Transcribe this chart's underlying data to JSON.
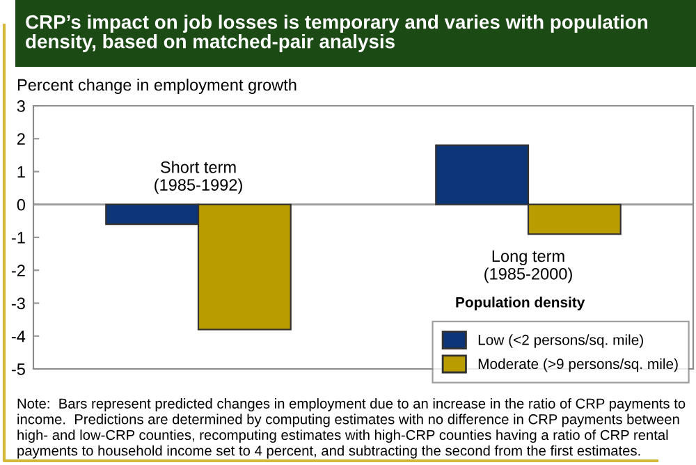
{
  "chart_data": {
    "type": "bar",
    "title": "CRP’s impact on job losses is temporary and varies with population density, based on matched-pair analysis",
    "ylabel": "Percent change in employment growth",
    "categories": [
      "Short term\n(1985-1992)",
      "Long term\n(1985-2000)"
    ],
    "series": [
      {
        "name": "Low (<2 persons/sq. mile)",
        "color": "#0c3677",
        "values": [
          -0.6,
          1.8
        ]
      },
      {
        "name": "Moderate (>9 persons/sq. mile)",
        "color": "#b89c00",
        "values": [
          -3.8,
          -0.9
        ]
      }
    ],
    "ylim": [
      -5,
      3
    ],
    "yticks": [
      -5,
      -4,
      -3,
      -2,
      -1,
      0,
      1,
      2,
      3
    ],
    "ref_lines": [
      {
        "axis": "y",
        "value": 0,
        "color": "#a0a0a0"
      }
    ],
    "legend": "bottom right",
    "legend_title": "Population density",
    "grid": false,
    "annotations": [
      "Note:  Bars represent predicted changes in employment due to an increase in the ratio of CRP payments to income.  Predictions are determined by computing estimates with no difference in CRP payments between high- and low-CRP counties, recomputing estimates with high-CRP counties having a ratio of CRP rental payments to household income set to 4 percent, and subtracting the second from the first estimates."
    ]
  }
}
